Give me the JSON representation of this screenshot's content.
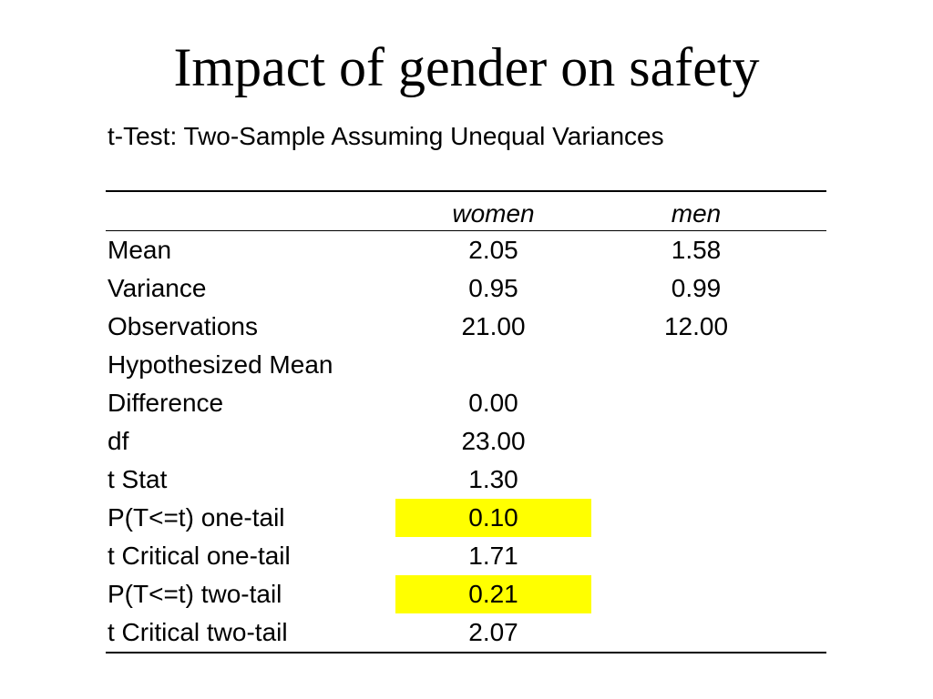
{
  "title": "Impact of gender on safety",
  "subtitle": "t-Test: Two-Sample Assuming Unequal Variances",
  "table": {
    "headers": [
      "",
      "women",
      "men"
    ],
    "rows": [
      {
        "label": "Mean",
        "women": "2.05",
        "men": "1.58",
        "highlight": false
      },
      {
        "label": "Variance",
        "women": "0.95",
        "men": "0.99",
        "highlight": false
      },
      {
        "label": "Observations",
        "women": "21.00",
        "men": "12.00",
        "highlight": false
      },
      {
        "label": "Hypothesized Mean",
        "women": "",
        "men": "",
        "highlight": false
      },
      {
        "label": "Difference",
        "women": "0.00",
        "men": "",
        "highlight": false
      },
      {
        "label": "df",
        "women": "23.00",
        "men": "",
        "highlight": false
      },
      {
        "label": "t Stat",
        "women": "1.30",
        "men": "",
        "highlight": false
      },
      {
        "label": "P(T<=t) one-tail",
        "women": "0.10",
        "men": "",
        "highlight": true
      },
      {
        "label": "t Critical one-tail",
        "women": "1.71",
        "men": "",
        "highlight": false
      },
      {
        "label": "P(T<=t) two-tail",
        "women": "0.21",
        "men": "",
        "highlight": true
      },
      {
        "label": "t Critical two-tail",
        "women": "2.07",
        "men": "",
        "highlight": false
      }
    ]
  },
  "colors": {
    "highlight": "#ffff00",
    "text": "#000000",
    "background": "#ffffff"
  }
}
